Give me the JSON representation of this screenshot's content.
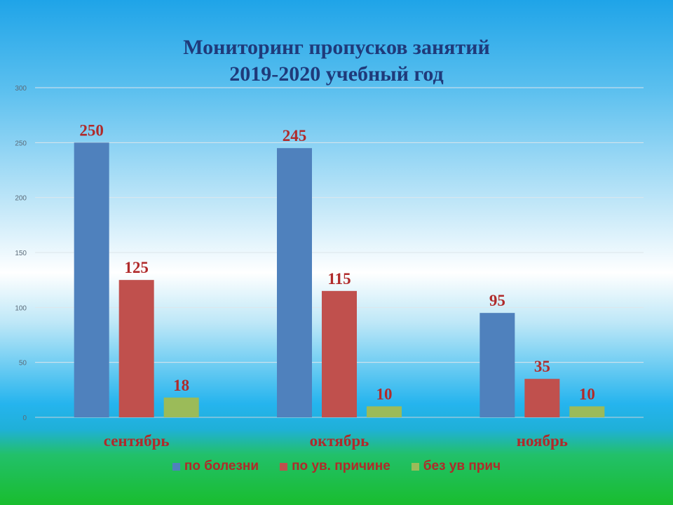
{
  "chart_data": {
    "type": "bar",
    "title": [
      "Мониторинг пропусков занятий",
      "2019-2020 учебный год"
    ],
    "categories": [
      "сентябрь",
      "октябрь",
      "ноябрь"
    ],
    "series": [
      {
        "name": "по болезни",
        "values": [
          250,
          245,
          95
        ],
        "color": "#4f81bd"
      },
      {
        "name": "по ув. причине",
        "values": [
          125,
          115,
          35
        ],
        "color": "#c0504d"
      },
      {
        "name": "без ув прич",
        "values": [
          18,
          10,
          10
        ],
        "color": "#9bbb59"
      }
    ],
    "ylim": [
      0,
      300
    ],
    "yticks": [
      0,
      50,
      100,
      150,
      200,
      250,
      300
    ],
    "grid": true,
    "legend_position": "bottom",
    "label_color": "#b02a2a",
    "title_color": "#1f3a7a"
  }
}
